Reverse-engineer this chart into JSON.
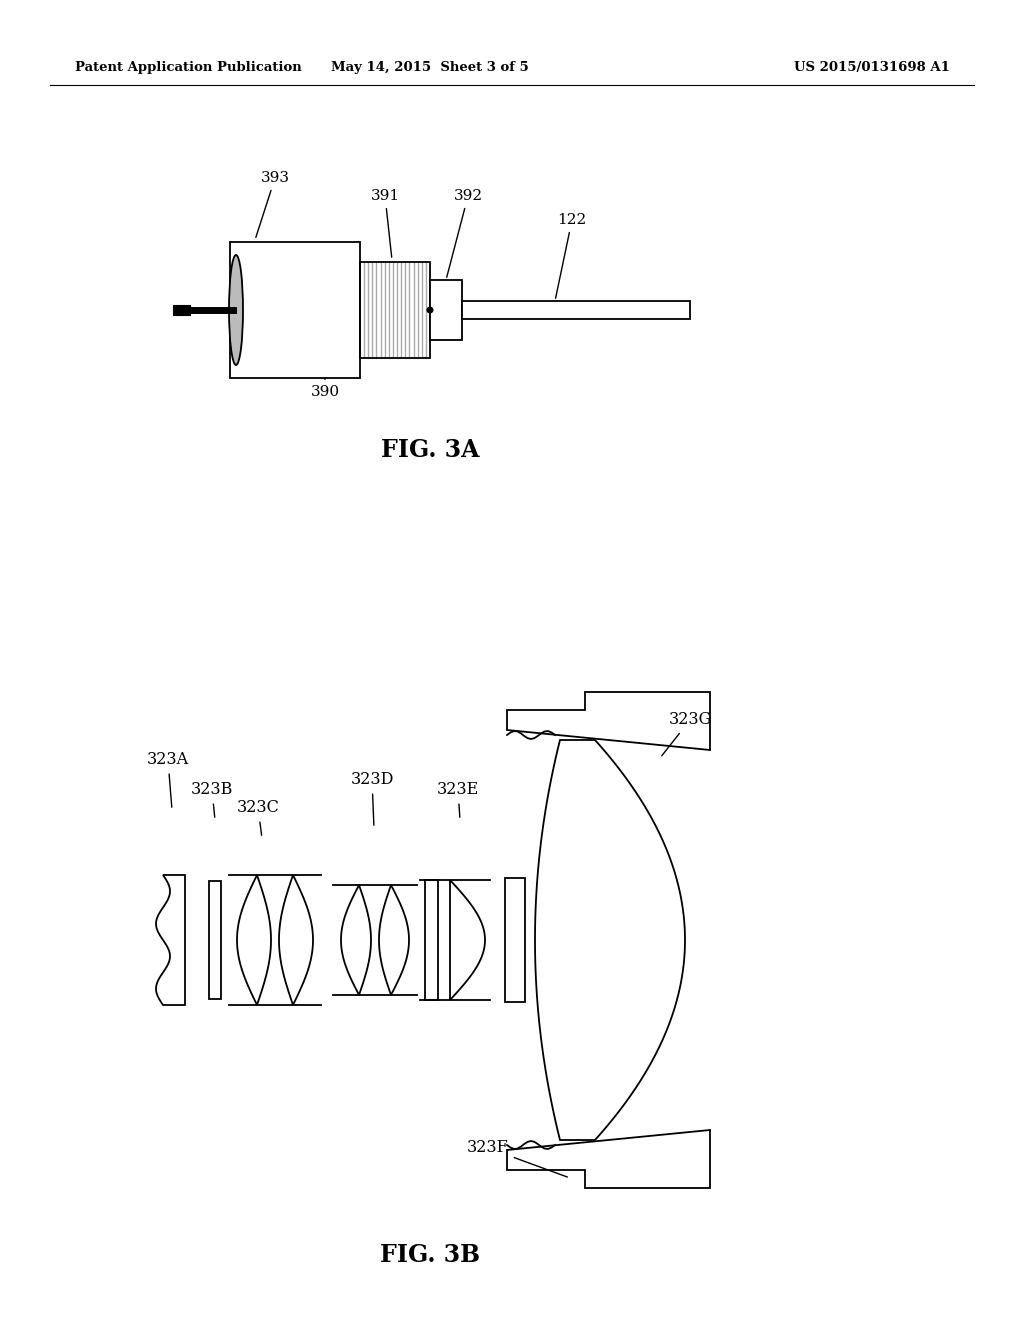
{
  "background_color": "#ffffff",
  "header_left": "Patent Application Publication",
  "header_mid": "May 14, 2015  Sheet 3 of 5",
  "header_right": "US 2015/0131698 A1",
  "fig3a_label": "FIG. 3A",
  "fig3b_label": "FIG. 3B"
}
